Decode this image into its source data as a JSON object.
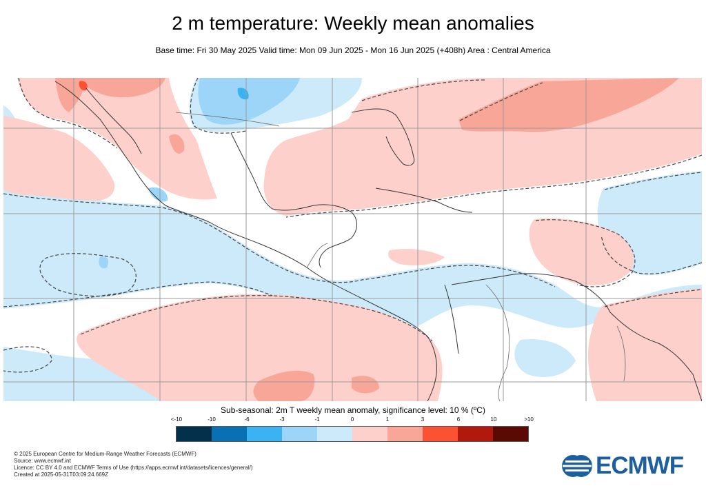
{
  "header": {
    "title": "2 m temperature: Weekly mean anomalies",
    "subtitle": "Base time: Fri 30 May 2025 Valid time: Mon 09 Jun 2025 - Mon 16 Jun 2025 (+408h) Area : Central America"
  },
  "map": {
    "region": "Central America",
    "colors": {
      "light_blue": "#cdeafb",
      "blue": "#9cd5f7",
      "mid_blue": "#3bb2f2",
      "light_red": "#fdd0cb",
      "red": "#f8a697",
      "ocean_white": "#ffffff",
      "grid": "#9a9a9a",
      "coast": "#333333",
      "contour": "#444444"
    }
  },
  "legend": {
    "title": "Sub-seasonal: 2m T weekly mean anomaly, significance level: 10 % (ºC)",
    "ticks": [
      "<-10",
      "-10",
      "-6",
      "-3",
      "-1",
      "0",
      "1",
      "3",
      "6",
      "10",
      ">10"
    ],
    "colors": [
      "#03304b",
      "#0a70b4",
      "#3bb2f2",
      "#9cd5f7",
      "#cdeafb",
      "#fdd0cb",
      "#f8a697",
      "#fc5233",
      "#b0190b",
      "#5b0903"
    ]
  },
  "footer": {
    "line1": "© 2025 European Centre for Medium-Range Weather Forecasts (ECMWF)",
    "line2": "Source: www.ecmwf.int",
    "line3": "Licence: CC BY 4.0 and ECMWF Terms of Use (https://apps.ecmwf.int/datasets/licences/general/)",
    "line4": "Created at 2025-05-31T03:09:24.669Z"
  },
  "logo": {
    "text": "ECMWF",
    "color": "#1d5f9c",
    "icon": "ecmwf-logo-icon"
  }
}
